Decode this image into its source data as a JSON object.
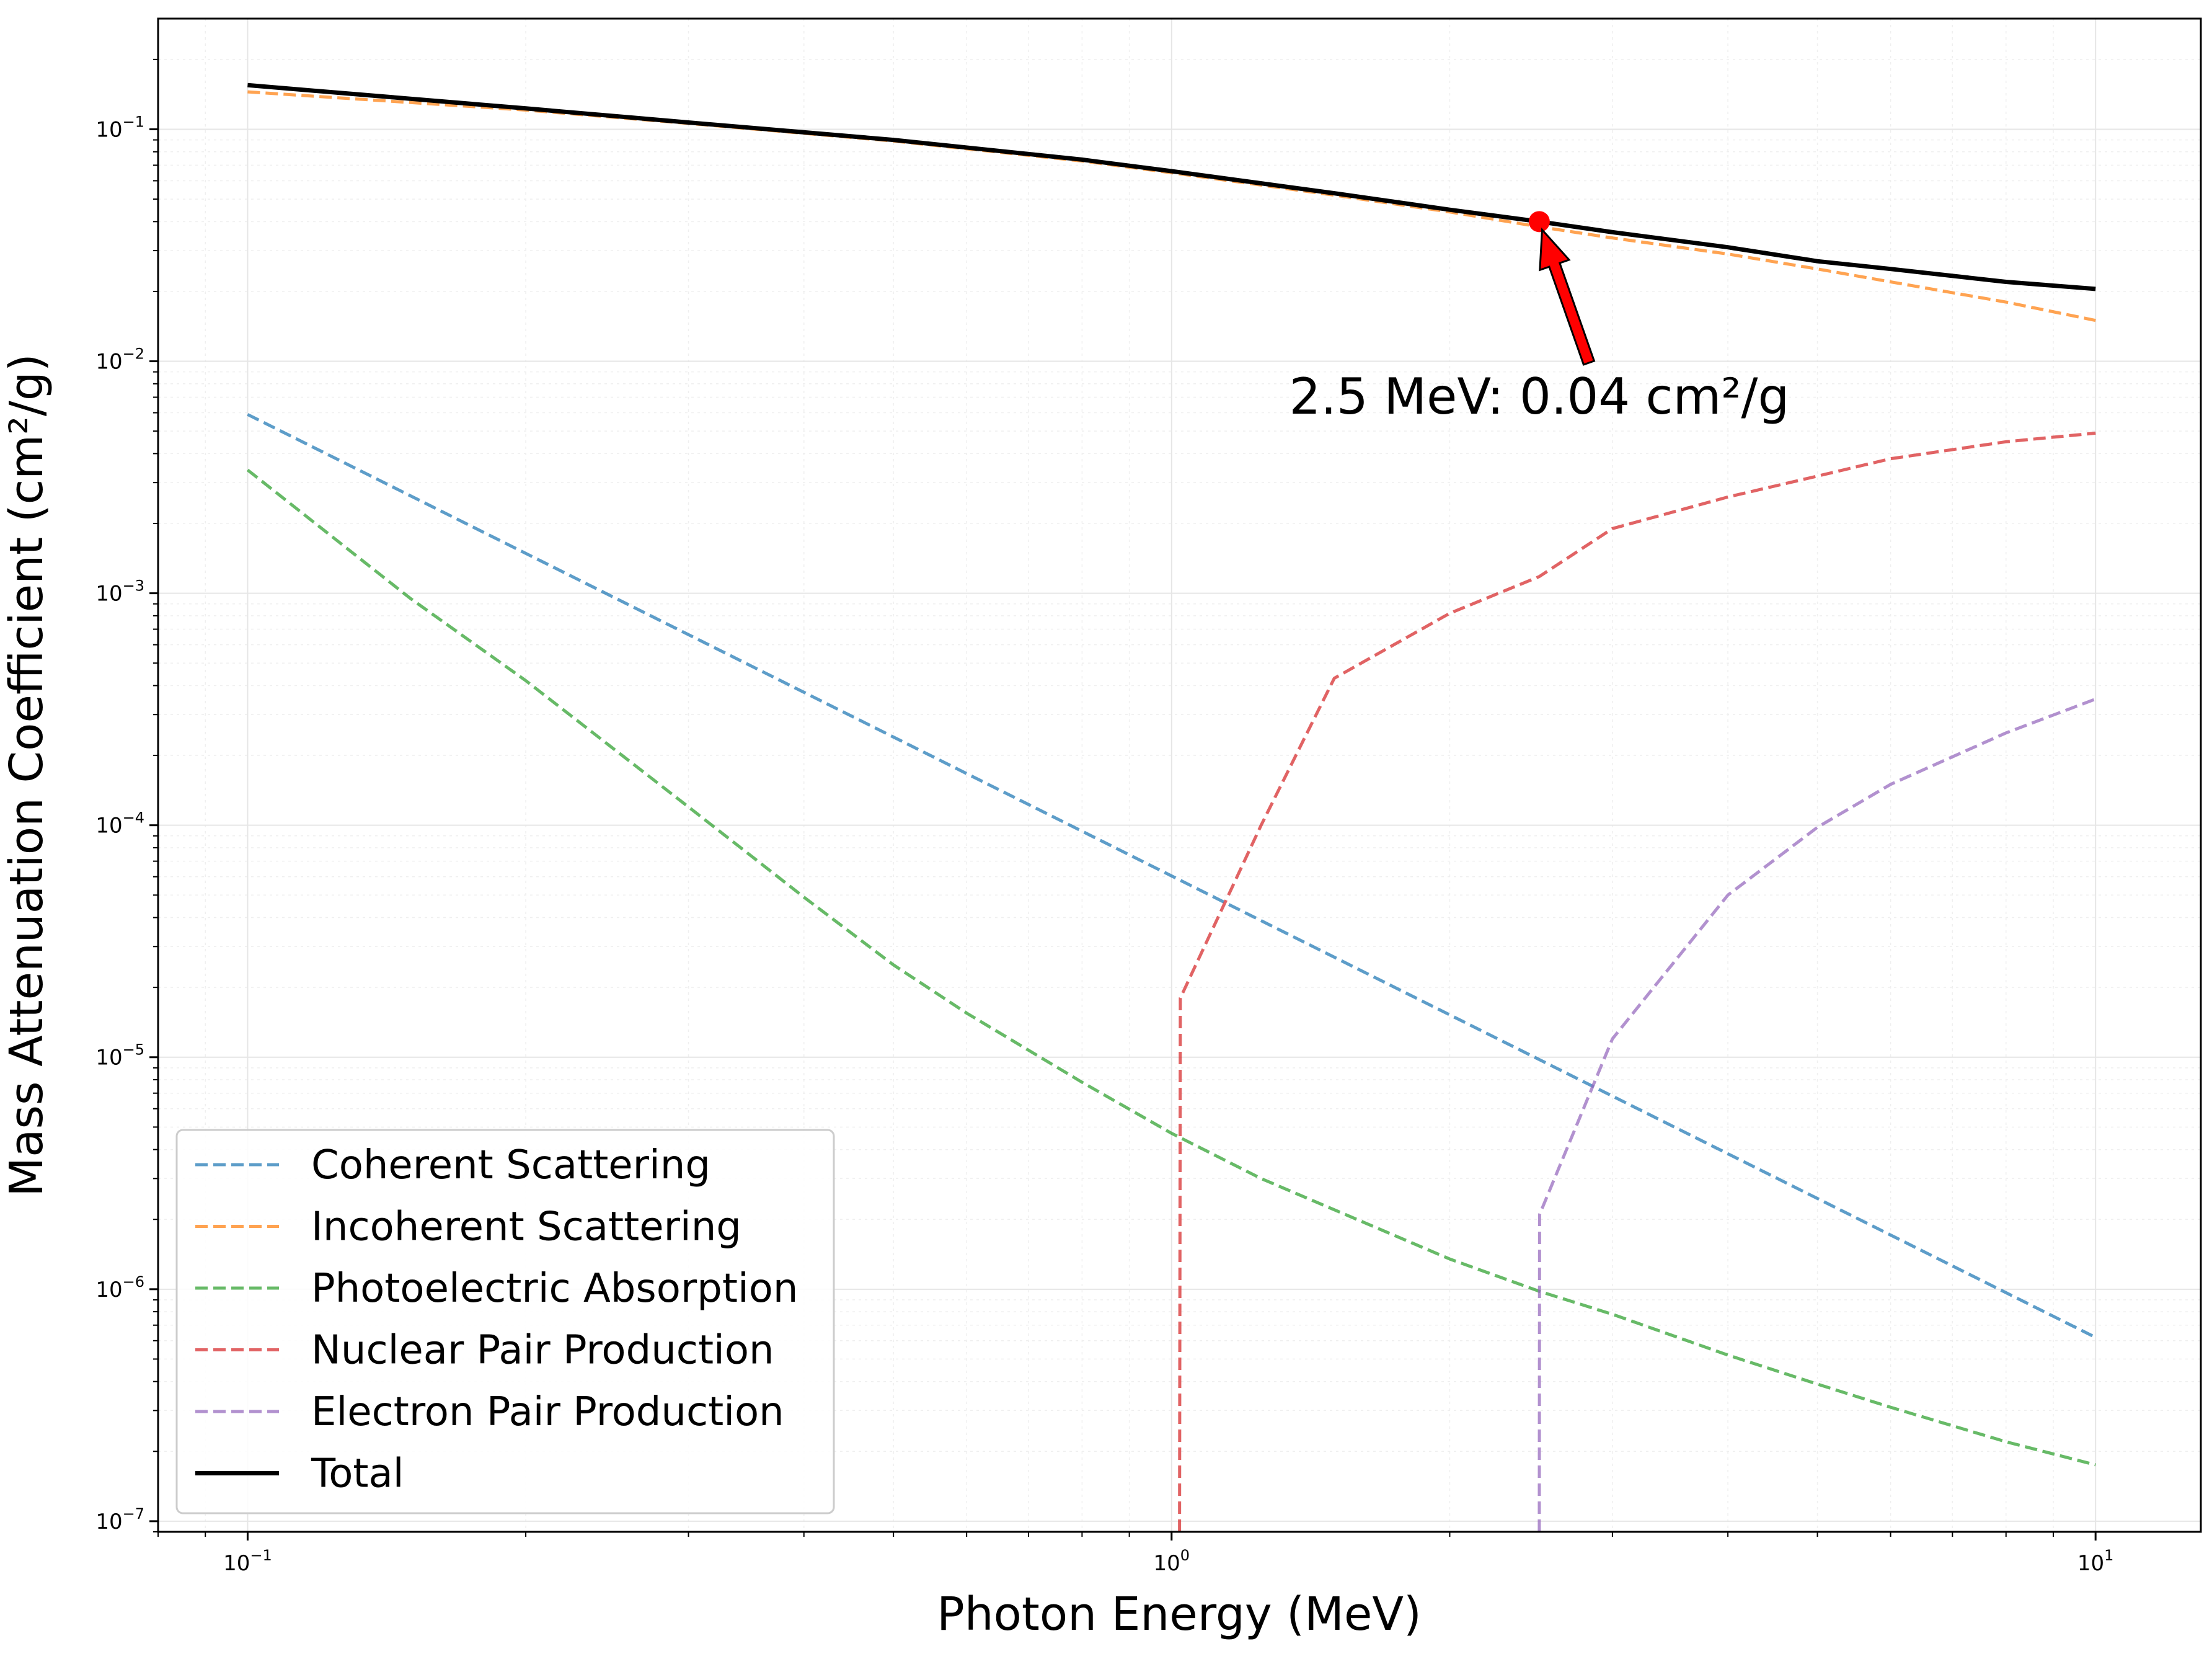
{
  "chart_data": {
    "type": "line",
    "xlabel": "Photon Energy (MeV)",
    "ylabel": "Mass Attenuation Coefficient (cm²/g)",
    "xscale": "log",
    "yscale": "log",
    "xlim": [
      0.08,
      13
    ],
    "ylim": [
      9e-08,
      0.3
    ],
    "grid": true,
    "legend_position": "lower-left",
    "x_ticks": [
      {
        "value": 0.1,
        "base": "10",
        "exp": "−1"
      },
      {
        "value": 1,
        "base": "10",
        "exp": "0"
      },
      {
        "value": 10,
        "base": "10",
        "exp": "1"
      }
    ],
    "y_ticks": [
      {
        "value": 0.1,
        "base": "10",
        "exp": "−1"
      },
      {
        "value": 0.01,
        "base": "10",
        "exp": "−2"
      },
      {
        "value": 0.001,
        "base": "10",
        "exp": "−3"
      },
      {
        "value": 0.0001,
        "base": "10",
        "exp": "−4"
      },
      {
        "value": 1e-05,
        "base": "10",
        "exp": "−5"
      },
      {
        "value": 1e-06,
        "base": "10",
        "exp": "−6"
      },
      {
        "value": 1e-07,
        "base": "10",
        "exp": "−7"
      }
    ],
    "series": [
      {
        "name": "Coherent Scattering",
        "color": "#1f77b4",
        "style": "dashed",
        "x": [
          0.1,
          10
        ],
        "y": [
          0.0059,
          6.2e-07
        ]
      },
      {
        "name": "Incoherent Scattering",
        "color": "#ff7f0e",
        "style": "dashed",
        "x": [
          0.1,
          0.2,
          0.3,
          0.5,
          0.8,
          1,
          1.5,
          2,
          2.5,
          3,
          4,
          5,
          6,
          8,
          10
        ],
        "y": [
          0.145,
          0.121,
          0.106,
          0.089,
          0.073,
          0.065,
          0.052,
          0.044,
          0.038,
          0.034,
          0.029,
          0.025,
          0.022,
          0.018,
          0.015
        ]
      },
      {
        "name": "Photoelectric Absorption",
        "color": "#2ca02c",
        "style": "dashed",
        "x": [
          0.1,
          0.15,
          0.2,
          0.3,
          0.4,
          0.5,
          0.6,
          0.8,
          1,
          1.25,
          1.5,
          2,
          2.5,
          3,
          4,
          5,
          6,
          8,
          10
        ],
        "y": [
          0.0034,
          0.00095,
          0.00042,
          0.00012,
          4.9e-05,
          2.5e-05,
          1.55e-05,
          7.8e-06,
          4.7e-06,
          3e-06,
          2.2e-06,
          1.35e-06,
          9.8e-07,
          7.8e-07,
          5.2e-07,
          3.9e-07,
          3.1e-07,
          2.2e-07,
          1.75e-07
        ]
      },
      {
        "name": "Nuclear Pair Production",
        "color": "#d62728",
        "style": "dashed",
        "x": [
          1.02,
          1.022,
          1.25,
          1.5,
          2,
          2.5,
          3,
          4,
          5,
          6,
          8,
          10
        ],
        "y": [
          9e-08,
          1.8e-05,
          0.0001,
          0.00043,
          0.00082,
          0.00118,
          0.0019,
          0.0026,
          0.0032,
          0.0038,
          0.0045,
          0.0049
        ]
      },
      {
        "name": "Electron Pair Production",
        "color": "#9467bd",
        "style": "dashed",
        "x": [
          2.5,
          2.502,
          3,
          4,
          5,
          6,
          8,
          10
        ],
        "y": [
          9e-08,
          2.1e-06,
          1.2e-05,
          5e-05,
          9.8e-05,
          0.00015,
          0.00025,
          0.00035
        ]
      },
      {
        "name": "Total",
        "color": "#000000",
        "style": "solid",
        "x": [
          0.1,
          0.2,
          0.3,
          0.5,
          0.8,
          1,
          1.5,
          2,
          2.5,
          3,
          4,
          5,
          6,
          8,
          10
        ],
        "y": [
          0.155,
          0.123,
          0.107,
          0.09,
          0.074,
          0.066,
          0.053,
          0.045,
          0.04,
          0.036,
          0.031,
          0.027,
          0.025,
          0.022,
          0.0205
        ]
      }
    ],
    "highlight_point": {
      "x": 2.5,
      "y": 0.04,
      "color": "#ff0000"
    },
    "annotation": {
      "text": "2.5 MeV: 0.04 cm²/g",
      "x_target": 2.5,
      "y_target": 0.04,
      "x_text": 2.5,
      "y_text": 0.0062,
      "arrow_color": "#ff0000"
    }
  }
}
